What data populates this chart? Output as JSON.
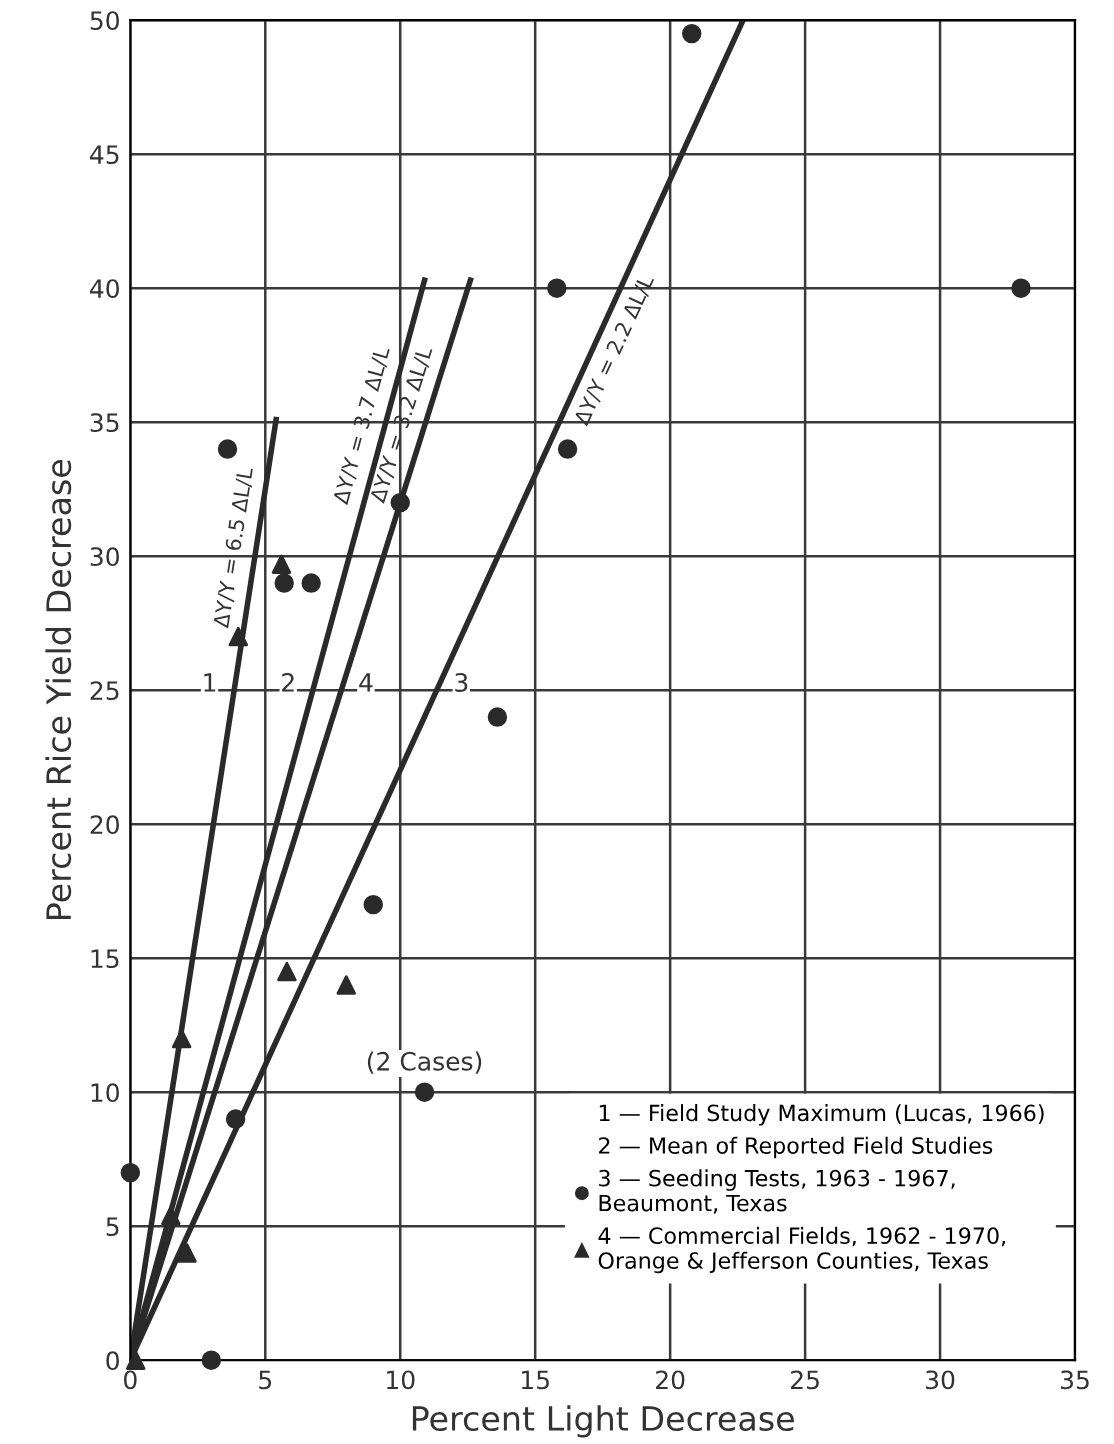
{
  "chart_data": {
    "type": "scatter",
    "xlabel": "Percent Light Decrease",
    "ylabel": "Percent Rice Yield Decrease",
    "xlim": [
      0,
      35
    ],
    "ylim": [
      0,
      50
    ],
    "xticks": [
      0,
      5,
      10,
      15,
      20,
      25,
      30,
      35
    ],
    "yticks": [
      0,
      5,
      10,
      15,
      20,
      25,
      30,
      35,
      40,
      45,
      50
    ],
    "grid": true,
    "legend": "bottom right",
    "series": [
      {
        "name": "ΔY/Y = 6.5 ΔL/L",
        "type": "line",
        "marker": "none",
        "color": "#2a2a2a",
        "x": [
          0,
          5.4
        ],
        "values": [
          0,
          35.1
        ]
      },
      {
        "name": "ΔY/Y = 3.7 ΔL/L",
        "type": "line",
        "marker": "none",
        "color": "#2a2a2a",
        "x": [
          0,
          10.9
        ],
        "values": [
          0,
          40.3
        ]
      },
      {
        "name": "ΔY/Y = 3.2 ΔL/L",
        "type": "line",
        "marker": "none",
        "color": "#2a2a2a",
        "x": [
          0,
          12.6
        ],
        "values": [
          0,
          40.3
        ]
      },
      {
        "name": "ΔY/Y = 2.2 ΔL/L",
        "type": "line",
        "marker": "none",
        "color": "#2a2a2a",
        "x": [
          0,
          22.7
        ],
        "values": [
          0,
          50
        ]
      },
      {
        "name": "3 — Seeding Tests, 1963 - 1967,\nBeaumont, Texas",
        "marker": "circle",
        "color": "#2a2a2a",
        "x": [
          0,
          3,
          3.9,
          9,
          10.9,
          13.6,
          3.6,
          5.7,
          6.7,
          10,
          15.8,
          16.2,
          20.8,
          33
        ],
        "values": [
          7,
          0,
          9,
          17,
          10,
          24,
          34,
          29,
          29,
          32,
          40,
          34,
          49.5,
          40
        ]
      },
      {
        "name": "4 — Commercial Fields, 1962 - 1970,\nOrange & Jefferson Counties, Texas",
        "marker": "triangle",
        "color": "#2a2a2a",
        "x": [
          0.2,
          1.9,
          1.5,
          2.1,
          5.8,
          8,
          4,
          5.6
        ],
        "values": [
          0,
          12,
          5.4,
          4,
          14.5,
          14,
          27,
          29.7
        ]
      }
    ],
    "annotations": [
      "1",
      "2",
      "4",
      "3",
      "1 — Field Study Maximum (Lucas, 1966)",
      "2 — Mean of Reported Field Studies",
      {
        "text": "(2 Cases)",
        "x": 10.9,
        "y": 10
      }
    ]
  }
}
